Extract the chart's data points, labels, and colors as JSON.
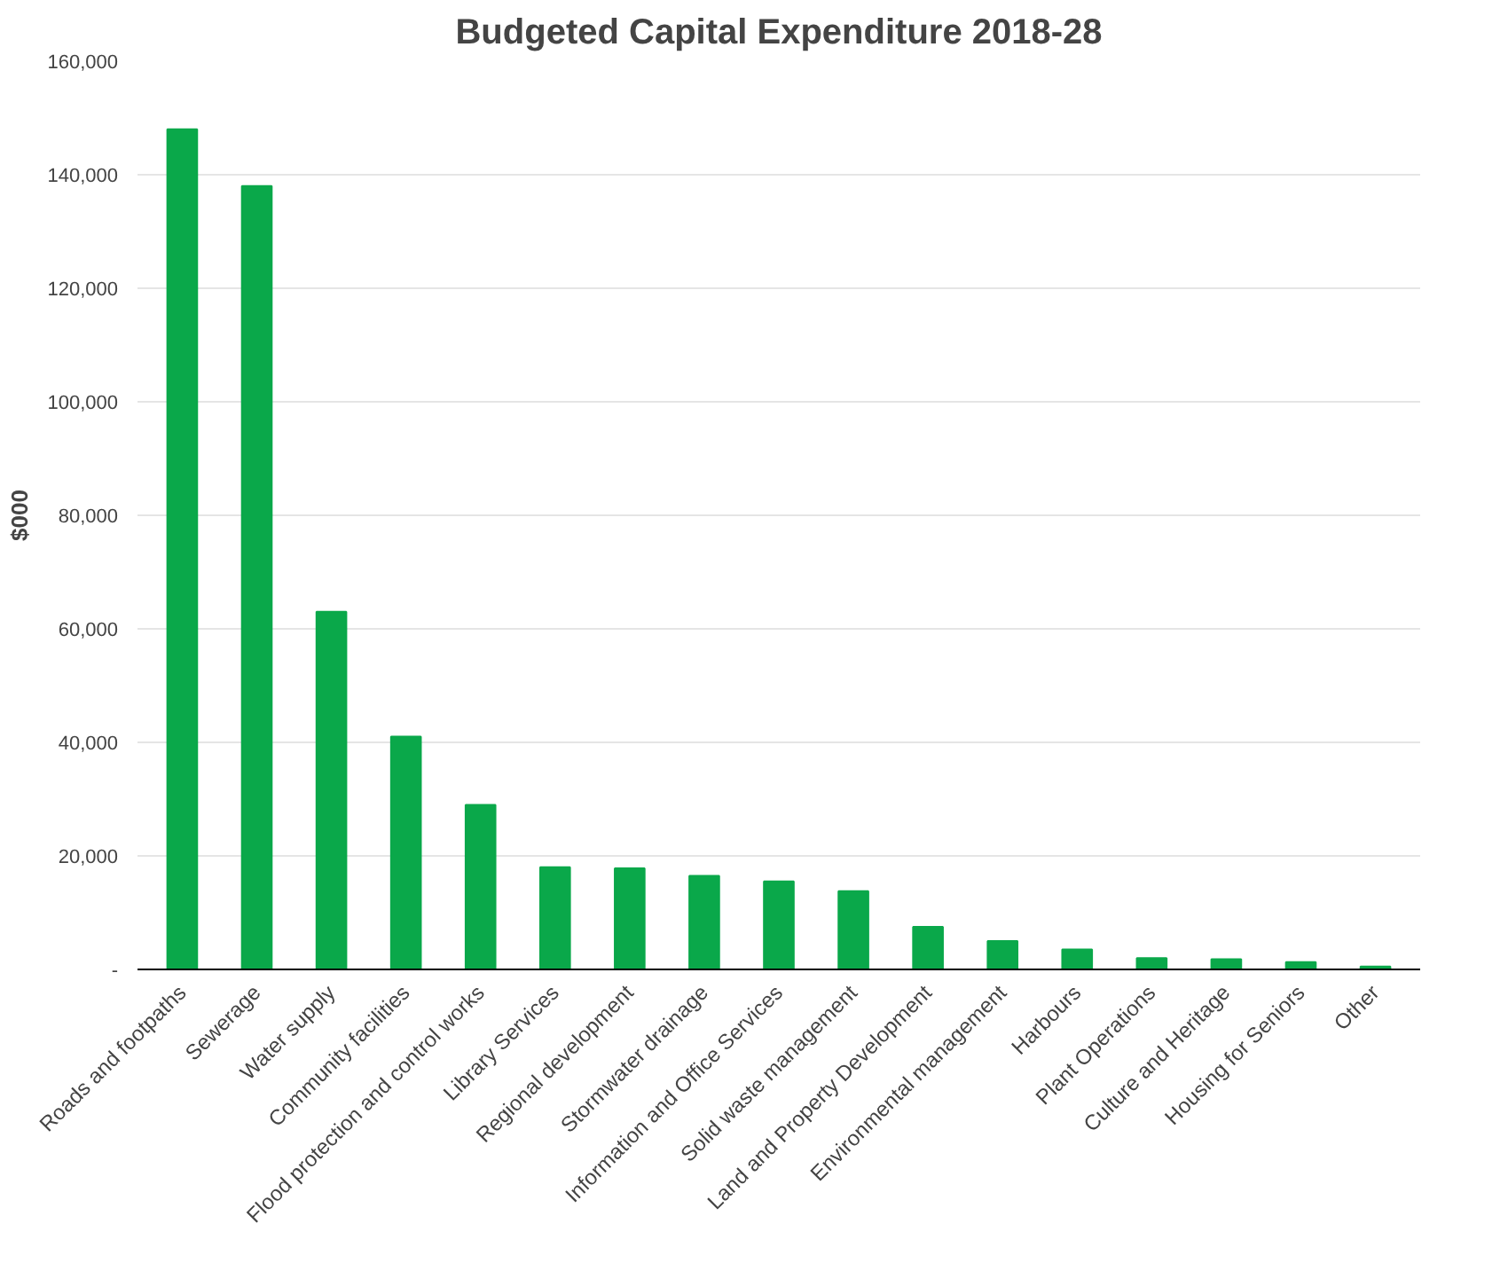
{
  "chart_data": {
    "type": "bar",
    "title": "Budgeted Capital Expenditure 2018-28",
    "ylabel": "$000",
    "categories": [
      "Roads and footpaths",
      "Sewerage",
      "Water supply",
      "Community facilities",
      "Flood protection and control works",
      "Library Services",
      "Regional development",
      "Stormwater drainage",
      "Information and Office Services",
      "Solid waste management",
      "Land and Property Development",
      "Environmental management",
      "Harbours",
      "Plant Operations",
      "Culture and Heritage",
      "Housing for Seniors",
      "Other"
    ],
    "values": [
      148000,
      138000,
      63000,
      41000,
      29000,
      18000,
      17800,
      16500,
      15500,
      13800,
      7500,
      5000,
      3500,
      2000,
      1800,
      1300,
      500
    ],
    "color": "#0aa84a",
    "ylim": [
      0,
      160000
    ],
    "yticks": [
      {
        "value": 0,
        "label": "-"
      },
      {
        "value": 20000,
        "label": "20,000"
      },
      {
        "value": 40000,
        "label": "40,000"
      },
      {
        "value": 60000,
        "label": "60,000"
      },
      {
        "value": 80000,
        "label": "80,000"
      },
      {
        "value": 100000,
        "label": "100,000"
      },
      {
        "value": 120000,
        "label": "120,000"
      },
      {
        "value": 140000,
        "label": "140,000"
      },
      {
        "value": 160000,
        "label": "160,000"
      }
    ],
    "grid": "y"
  }
}
